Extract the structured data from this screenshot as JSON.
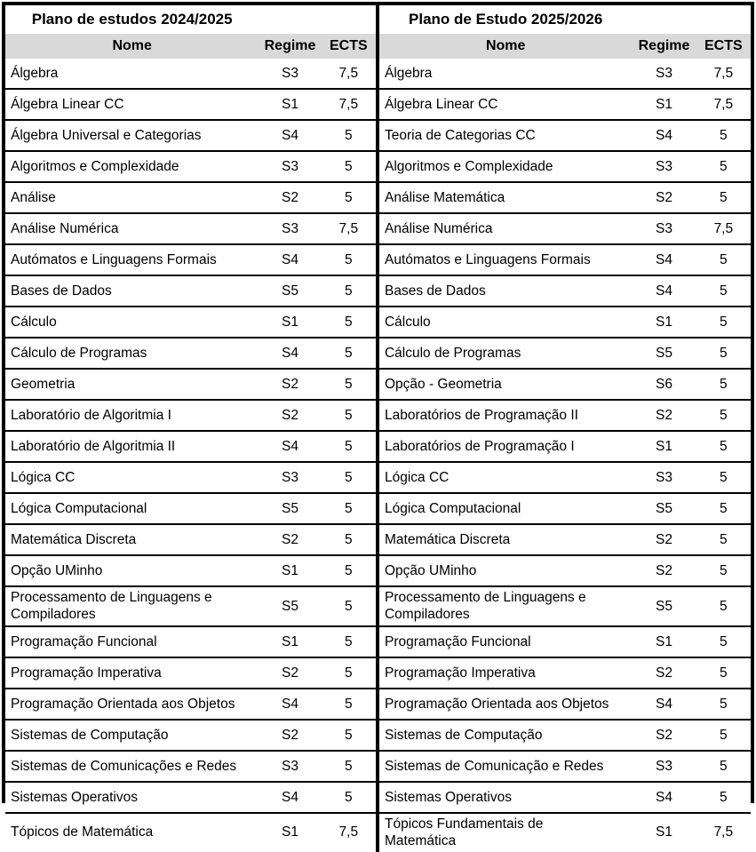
{
  "chart_data": [
    {
      "type": "table",
      "title": "Plano de estudos 2024/2025",
      "columns": [
        "Nome",
        "Regime",
        "ECTS"
      ],
      "rows": [
        [
          "Álgebra",
          "S3",
          "7,5"
        ],
        [
          "Álgebra Linear CC",
          "S1",
          "7,5"
        ],
        [
          "Álgebra Universal e Categorias",
          "S4",
          "5"
        ],
        [
          "Algoritmos e Complexidade",
          "S3",
          "5"
        ],
        [
          "Análise",
          "S2",
          "5"
        ],
        [
          "Análise Numérica",
          "S3",
          "7,5"
        ],
        [
          "Autómatos e Linguagens Formais",
          "S4",
          "5"
        ],
        [
          "Bases de Dados",
          "S5",
          "5"
        ],
        [
          "Cálculo",
          "S1",
          "5"
        ],
        [
          "Cálculo de Programas",
          "S4",
          "5"
        ],
        [
          "Geometria",
          "S2",
          "5"
        ],
        [
          "Laboratório de Algoritmia I",
          "S2",
          "5"
        ],
        [
          "Laboratório de Algoritmia II",
          "S4",
          "5"
        ],
        [
          "Lógica CC",
          "S3",
          "5"
        ],
        [
          "Lógica Computacional",
          "S5",
          "5"
        ],
        [
          "Matemática Discreta",
          "S2",
          "5"
        ],
        [
          "Opção UMinho",
          "S1",
          "5"
        ],
        [
          "Processamento de Linguagens e\nCompiladores",
          "S5",
          "5"
        ],
        [
          "Programação Funcional",
          "S1",
          "5"
        ],
        [
          "Programação Imperativa",
          "S2",
          "5"
        ],
        [
          "Programação Orientada aos Objetos",
          "S4",
          "5"
        ],
        [
          "Sistemas de Computação",
          "S2",
          "5"
        ],
        [
          "Sistemas de Comunicações e Redes",
          "S3",
          "5"
        ],
        [
          "Sistemas Operativos",
          "S4",
          "5"
        ],
        [
          "Tópicos de Matemática",
          "S1",
          "7,5"
        ]
      ]
    },
    {
      "type": "table",
      "title": "Plano de Estudo 2025/2026",
      "columns": [
        "Nome",
        "Regime",
        "ECTS"
      ],
      "rows": [
        [
          "Álgebra",
          "S3",
          "7,5"
        ],
        [
          "Álgebra Linear CC",
          "S1",
          "7,5"
        ],
        [
          "Teoria de Categorias CC",
          "S4",
          "5"
        ],
        [
          "Algoritmos e Complexidade",
          "S3",
          "5"
        ],
        [
          "Análise Matemática",
          "S2",
          "5"
        ],
        [
          "Análise Numérica",
          "S3",
          "7,5"
        ],
        [
          "Autómatos e Linguagens Formais",
          "S4",
          "5"
        ],
        [
          "Bases de Dados",
          "S4",
          "5"
        ],
        [
          "Cálculo",
          "S1",
          "5"
        ],
        [
          "Cálculo de Programas",
          "S5",
          "5"
        ],
        [
          "Opção - Geometria",
          "S6",
          "5"
        ],
        [
          "Laboratórios de Programação II",
          "S2",
          "5"
        ],
        [
          "Laboratórios de Programação I",
          "S1",
          "5"
        ],
        [
          "Lógica CC",
          "S3",
          "5"
        ],
        [
          "Lógica Computacional",
          "S5",
          "5"
        ],
        [
          "Matemática Discreta",
          "S2",
          "5"
        ],
        [
          "Opção UMinho",
          "S2",
          "5"
        ],
        [
          "Processamento de Linguagens e\nCompiladores",
          "S5",
          "5"
        ],
        [
          "Programação Funcional",
          "S1",
          "5"
        ],
        [
          "Programação Imperativa",
          "S2",
          "5"
        ],
        [
          "Programação Orientada aos Objetos",
          "S4",
          "5"
        ],
        [
          "Sistemas de Computação",
          "S2",
          "5"
        ],
        [
          "Sistemas de Comunicação e Redes",
          "S3",
          "5"
        ],
        [
          "Sistemas Operativos",
          "S4",
          "5"
        ],
        [
          "Tópicos Fundamentais de\nMatemática",
          "S1",
          "7,5"
        ]
      ]
    }
  ],
  "colors": {
    "header_bg": "#d9d9d9",
    "border": "#000000",
    "background": "#ffffff",
    "text": "#000000"
  }
}
